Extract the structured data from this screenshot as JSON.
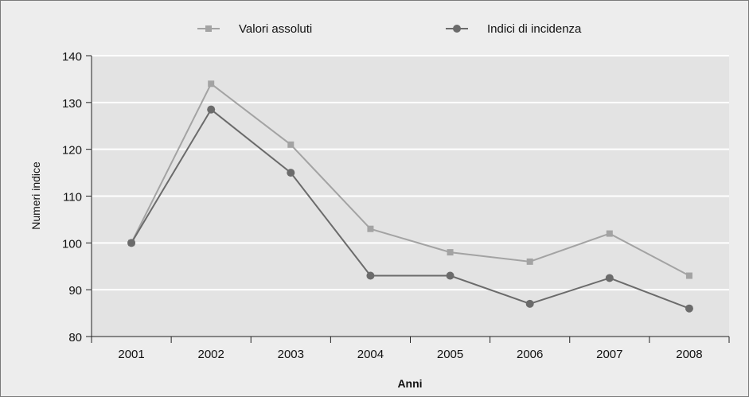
{
  "chart_data": {
    "type": "line",
    "categories": [
      "2001",
      "2002",
      "2003",
      "2004",
      "2005",
      "2006",
      "2007",
      "2008"
    ],
    "series": [
      {
        "name": "Valori assoluti",
        "values": [
          100,
          134,
          121,
          103,
          98,
          96,
          102,
          93
        ],
        "color": "#a3a3a3",
        "marker": "square"
      },
      {
        "name": "Indici di incidenza",
        "values": [
          100,
          128.5,
          115,
          93,
          93,
          87,
          92.5,
          86
        ],
        "color": "#6b6b6b",
        "marker": "circle"
      }
    ],
    "xlabel": "Anni",
    "ylabel": "Numeri indice",
    "ylim": [
      80,
      140
    ],
    "yticks": [
      80,
      90,
      100,
      110,
      120,
      130,
      140
    ],
    "grid": true,
    "legend_position": "top"
  },
  "colors": {
    "plot_background": "#e3e3e3",
    "page_background": "#ededed",
    "grid": "#ffffff"
  }
}
